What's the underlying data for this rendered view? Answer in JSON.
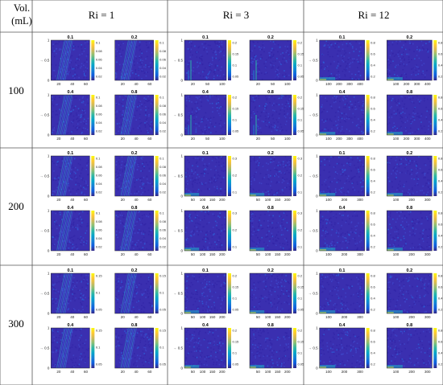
{
  "table": {
    "corner_label": [
      "Vol.",
      "(mL)"
    ],
    "columns": [
      "Ri = 1",
      "Ri = 3",
      "Ri = 12"
    ],
    "rows": [
      "100",
      "200",
      "300"
    ]
  },
  "chart_data": {
    "type": "heatmap",
    "panel_titles": [
      "0.1",
      "0.2",
      "0.4",
      "0.8"
    ],
    "y_ticks": [
      "1",
      "0.5",
      "0"
    ],
    "y_axis_label": "→",
    "colormap": [
      "#352a87",
      "#0f5cdd",
      "#1481d6",
      "#06a4ca",
      "#2eb7a4",
      "#87bf77",
      "#d1bb59",
      "#fec832",
      "#f9fb0e"
    ],
    "background_color": "#3a2fb0",
    "cells": [
      {
        "row": "100",
        "column": "Ri = 1",
        "x_ticks": [
          "20",
          "40",
          "60"
        ],
        "colorbar_ticks": [
          "0.1",
          "0.08",
          "0.06",
          "0.04",
          "0.02"
        ]
      },
      {
        "row": "100",
        "column": "Ri = 3",
        "x_ticks": [
          "20",
          "50",
          "100"
        ],
        "colorbar_ticks": [
          "0.2",
          "0.15",
          "0.1",
          "0.05"
        ]
      },
      {
        "row": "100",
        "column": "Ri = 12",
        "x_ticks": [
          "100",
          "200",
          "300",
          "400"
        ],
        "colorbar_ticks": [
          "0.8",
          "0.6",
          "0.4",
          "0.2"
        ]
      },
      {
        "row": "200",
        "column": "Ri = 1",
        "x_ticks": [
          "20",
          "40",
          "60"
        ],
        "colorbar_ticks": [
          "0.1",
          "0.08",
          "0.06",
          "0.04",
          "0.02"
        ]
      },
      {
        "row": "200",
        "column": "Ri = 3",
        "x_ticks": [
          "50",
          "100",
          "150",
          "200"
        ],
        "colorbar_ticks": [
          "0.3",
          "0.2",
          "0.1"
        ]
      },
      {
        "row": "200",
        "column": "Ri = 12",
        "x_ticks": [
          "100",
          "200",
          "300"
        ],
        "colorbar_ticks": [
          "0.8",
          "0.6",
          "0.4",
          "0.2"
        ]
      },
      {
        "row": "300",
        "column": "Ri = 1",
        "x_ticks": [
          "20",
          "40",
          "60"
        ],
        "colorbar_ticks": [
          "0.15",
          "0.1",
          "0.05"
        ]
      },
      {
        "row": "300",
        "column": "Ri = 3",
        "x_ticks": [
          "50",
          "100",
          "150",
          "200"
        ],
        "colorbar_ticks": [
          "0.2",
          "0.15",
          "0.1",
          "0.05"
        ]
      },
      {
        "row": "300",
        "column": "Ri = 12",
        "x_ticks": [
          "100",
          "200",
          "300"
        ],
        "colorbar_ticks": [
          "0.8",
          "0.6",
          "0.4",
          "0.2"
        ]
      }
    ]
  }
}
